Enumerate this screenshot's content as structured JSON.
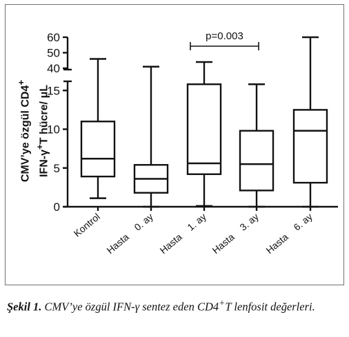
{
  "chart_data": {
    "type": "box",
    "ylabel_line1": "CMV’ye özgül CD4",
    "ylabel_line1_sup": "+",
    "ylabel_line2_pre": "IFN-γ",
    "ylabel_line2_sup": "+",
    "ylabel_line2_post": "T hücre/ μL",
    "y_ticks_lower": [
      "0",
      "5",
      "10",
      "15"
    ],
    "y_ticks_upper": [
      "40",
      "50",
      "60"
    ],
    "ylim_lower": [
      0,
      16
    ],
    "ylim_upper": [
      40,
      60
    ],
    "axis_break": true,
    "categories": [
      "Kontrol",
      "Hasta    0. ay",
      "Hasta    1. ay",
      "Hasta    3. ay",
      "Hasta    6. ay"
    ],
    "boxes": [
      {
        "whisker_low": 1.1,
        "q1": 3.9,
        "median": 6.2,
        "q3": 11.0,
        "whisker_high": 46
      },
      {
        "whisker_low": 0.0,
        "q1": 1.8,
        "median": 3.6,
        "q3": 5.4,
        "whisker_high": 41
      },
      {
        "whisker_low": 0.1,
        "q1": 4.2,
        "median": 5.6,
        "q3": 15.8,
        "whisker_high": 44
      },
      {
        "whisker_low": 0.0,
        "q1": 2.1,
        "median": 5.5,
        "q3": 9.8,
        "whisker_high": 15.8
      },
      {
        "whisker_low": 0.0,
        "q1": 3.1,
        "median": 9.8,
        "q3": 12.5,
        "whisker_high": 60
      }
    ],
    "annotation": {
      "text": "p=0.003",
      "from_index": 2,
      "to_index": 3
    }
  },
  "caption": {
    "label": "Şekil 1.",
    "text_pre": "CMV’ye özgül IFN-γ sentez eden CD4",
    "sup": "+",
    "text_post": "T lenfosit değerleri."
  }
}
